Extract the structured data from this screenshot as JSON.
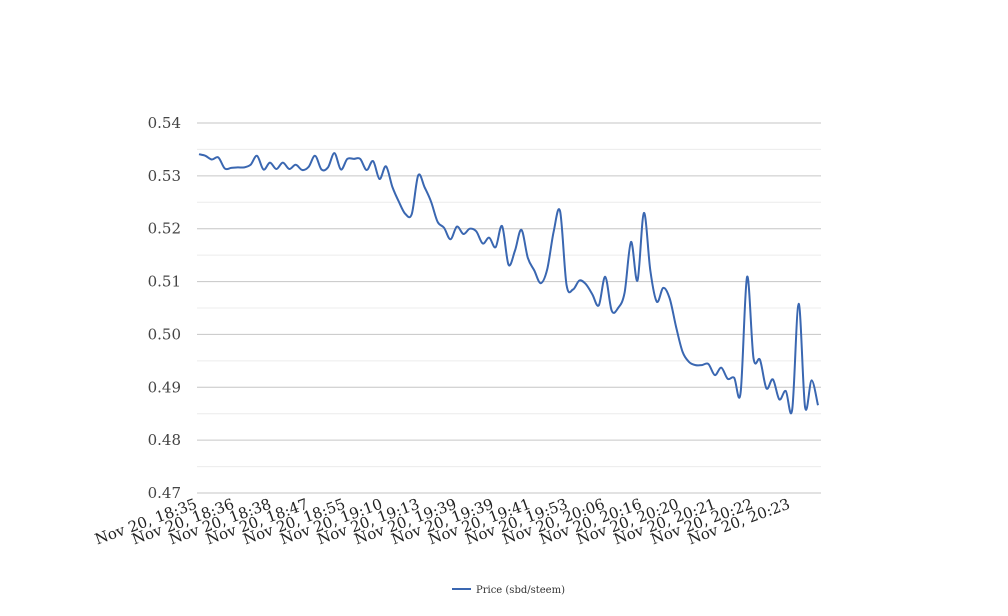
{
  "chart_data": {
    "type": "line",
    "yticks": [
      "0.47",
      "0.48",
      "0.49",
      "0.50",
      "0.51",
      "0.52",
      "0.53",
      "0.54"
    ],
    "ylim": [
      0.47,
      0.54
    ],
    "grid": true,
    "legend_position": "bottom",
    "series_color": "#3a67b1",
    "x_tick_labels": [
      "Nov 20, 18:35",
      "Nov 20, 18:36",
      "Nov 20, 18:38",
      "Nov 20, 18:47",
      "Nov 20, 18:55",
      "Nov 20, 19:10",
      "Nov 20, 19:13",
      "Nov 20, 19:39",
      "Nov 20, 19:39",
      "Nov 20, 19:41",
      "Nov 20, 19:53",
      "Nov 20, 20:06",
      "Nov 20, 20:16",
      "Nov 20, 20:20",
      "Nov 20, 20:21",
      "Nov 20, 20:22",
      "Nov 20, 20:23"
    ],
    "series": [
      {
        "name": "Price (sbd/steem)",
        "values": [
          0.5341,
          0.5338,
          0.5331,
          0.5335,
          0.5314,
          0.5315,
          0.5316,
          0.5316,
          0.5321,
          0.5338,
          0.5312,
          0.5325,
          0.5313,
          0.5325,
          0.5313,
          0.5321,
          0.5311,
          0.5317,
          0.5338,
          0.5312,
          0.5316,
          0.5343,
          0.5312,
          0.5332,
          0.5332,
          0.5332,
          0.5311,
          0.5328,
          0.5294,
          0.5318,
          0.5279,
          0.5251,
          0.5228,
          0.5228,
          0.5301,
          0.5278,
          0.5251,
          0.5213,
          0.5202,
          0.518,
          0.5204,
          0.519,
          0.52,
          0.5195,
          0.5172,
          0.5183,
          0.5165,
          0.5205,
          0.5132,
          0.5158,
          0.5198,
          0.5145,
          0.5121,
          0.5097,
          0.5123,
          0.5194,
          0.5233,
          0.5094,
          0.5085,
          0.5102,
          0.5095,
          0.5076,
          0.5055,
          0.5109,
          0.5045,
          0.505,
          0.5079,
          0.5175,
          0.5102,
          0.523,
          0.512,
          0.5062,
          0.5088,
          0.5068,
          0.5014,
          0.4967,
          0.4948,
          0.4942,
          0.4942,
          0.4944,
          0.4923,
          0.4937,
          0.4916,
          0.4918,
          0.489,
          0.5109,
          0.4955,
          0.4952,
          0.4898,
          0.4915,
          0.4877,
          0.4893,
          0.4858,
          0.5058,
          0.4862,
          0.4913,
          0.4866
        ]
      }
    ]
  }
}
